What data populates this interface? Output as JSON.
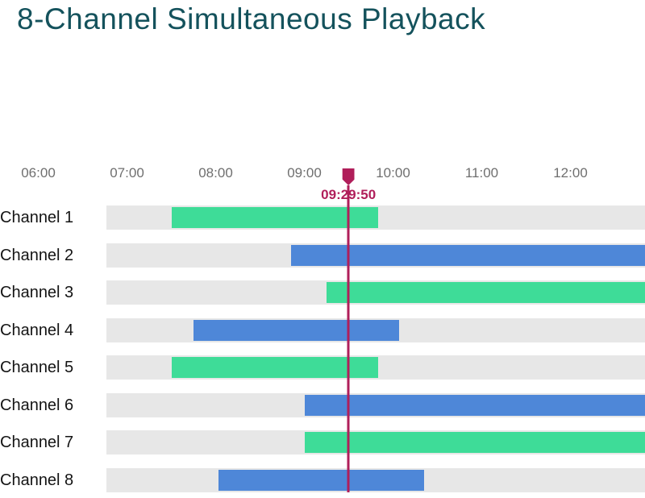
{
  "header": {
    "title": "8-Channel Simultaneous Playback"
  },
  "colors": {
    "title": "#14525c",
    "axis_label": "#6f6f6f",
    "channel_label": "#141414",
    "track": "#e7e7e7",
    "green": "#3edc98",
    "blue": "#4e87d8",
    "playhead": "#b01e5a"
  },
  "chart_data": {
    "type": "timeline",
    "title": "8-Channel Simultaneous Playback",
    "x_axis": {
      "tick_labels": [
        "06:00",
        "07:00",
        "08:00",
        "09:00",
        "10:00",
        "11:00",
        "12:00"
      ],
      "tick_interval": "1 hour",
      "visible_start": "06:00",
      "grid": false
    },
    "playhead": {
      "time": "09:29:50",
      "label": "09:29:50"
    },
    "channels": [
      {
        "label": "Channel 1",
        "segments": [
          {
            "start": "07:30",
            "end": "09:50",
            "color": "green",
            "clipped_right": false
          }
        ]
      },
      {
        "label": "Channel 2",
        "segments": [
          {
            "start": "08:51",
            "end": null,
            "color": "blue",
            "clipped_right": true
          }
        ]
      },
      {
        "label": "Channel 3",
        "segments": [
          {
            "start": "09:15",
            "end": null,
            "color": "green",
            "clipped_right": true
          }
        ]
      },
      {
        "label": "Channel 4",
        "segments": [
          {
            "start": "07:45",
            "end": "10:04",
            "color": "blue",
            "clipped_right": false
          }
        ]
      },
      {
        "label": "Channel 5",
        "segments": [
          {
            "start": "07:30",
            "end": "09:50",
            "color": "green",
            "clipped_right": false
          }
        ]
      },
      {
        "label": "Channel 6",
        "segments": [
          {
            "start": "09:00",
            "end": null,
            "color": "blue",
            "clipped_right": true
          }
        ]
      },
      {
        "label": "Channel 7",
        "segments": [
          {
            "start": "09:00",
            "end": null,
            "color": "green",
            "clipped_right": true
          }
        ]
      },
      {
        "label": "Channel 8",
        "segments": [
          {
            "start": "08:02",
            "end": "10:21",
            "color": "blue",
            "clipped_right": false
          }
        ]
      }
    ]
  }
}
